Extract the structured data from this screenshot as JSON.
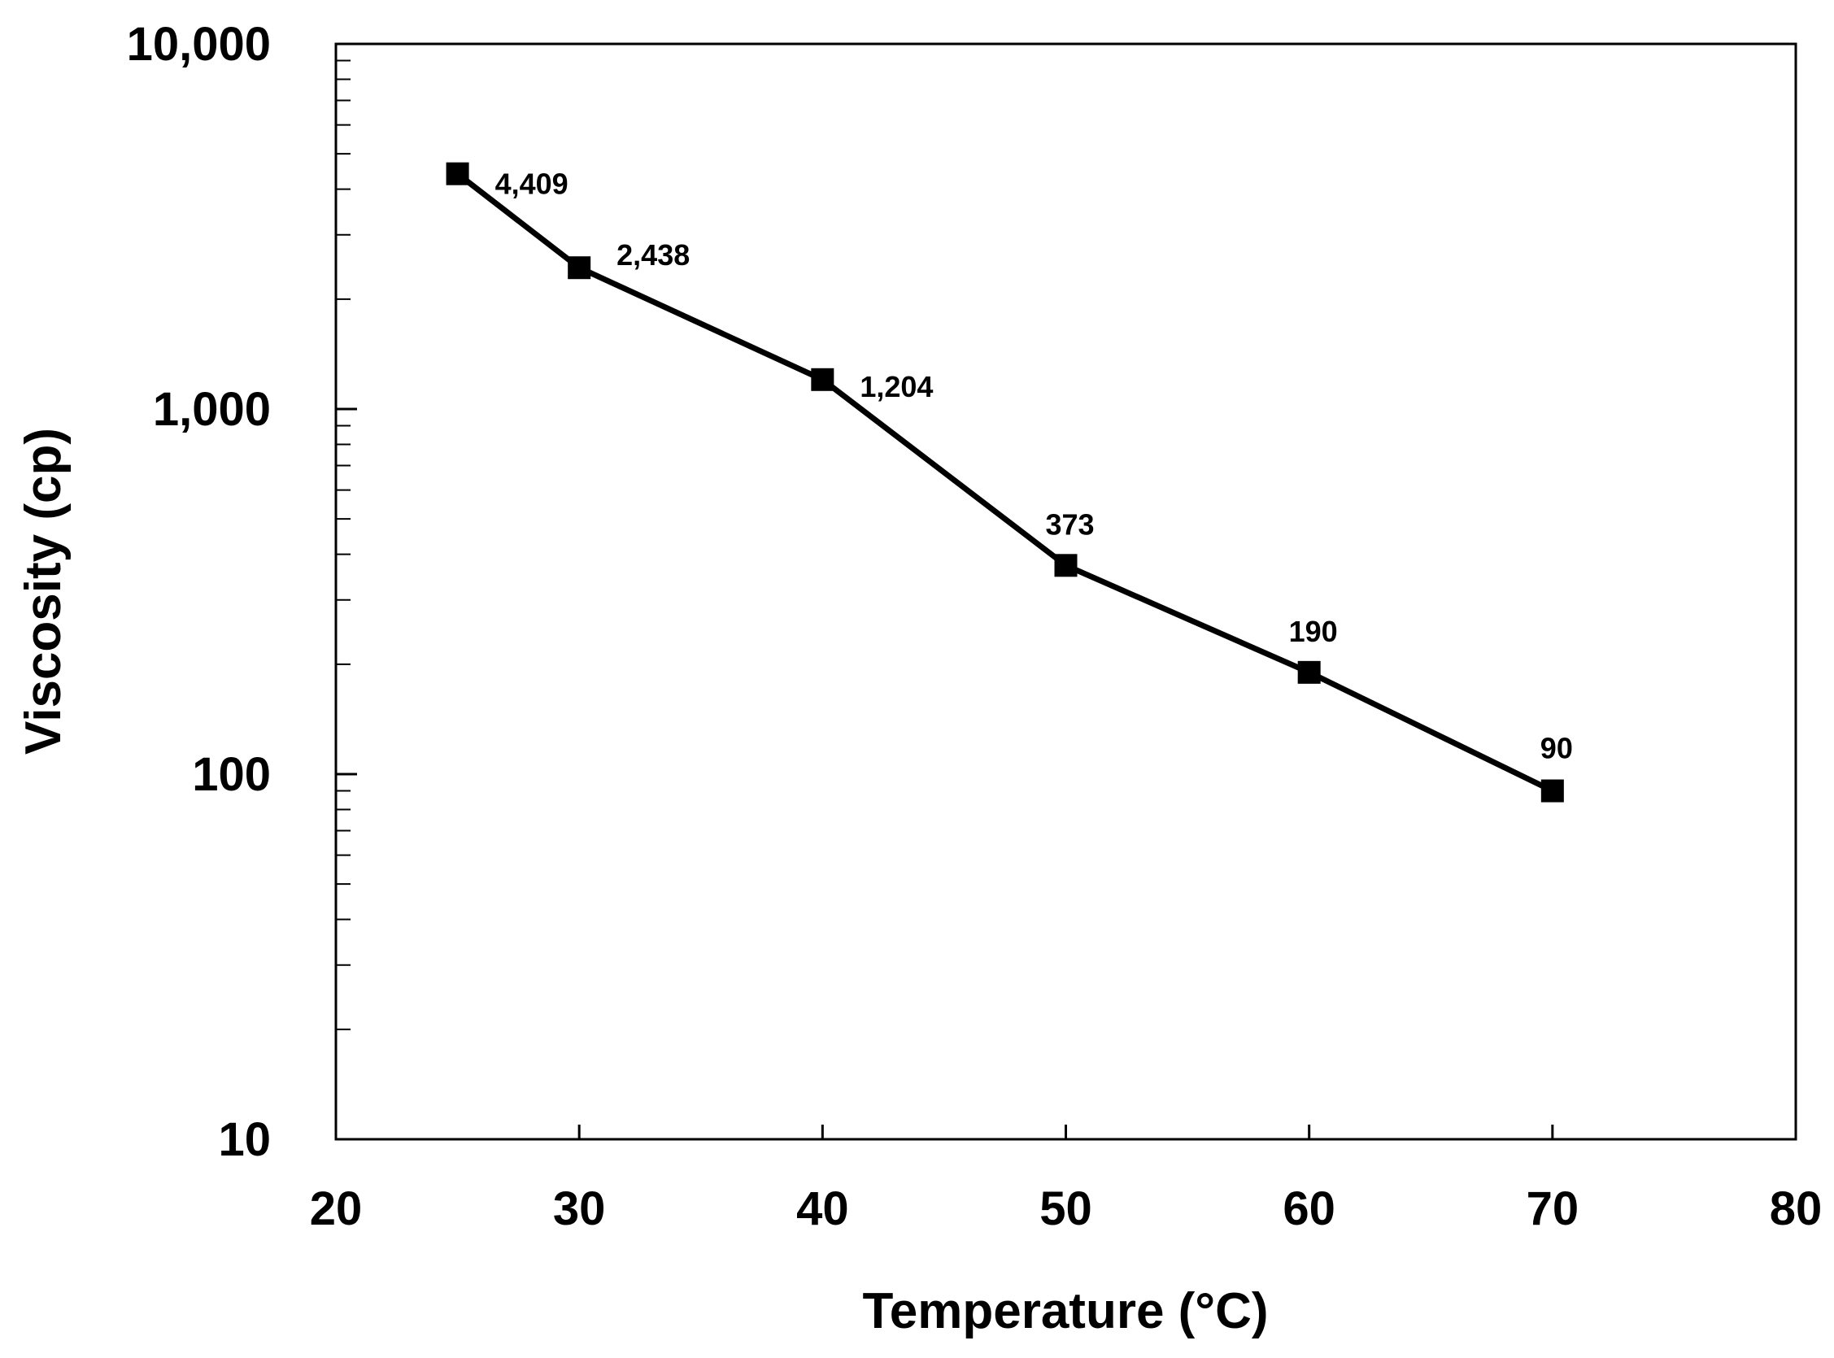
{
  "chart_data": {
    "type": "line",
    "title": "",
    "xlabel": "Temperature (°C)",
    "ylabel": "Viscosity (cp)",
    "xlim": [
      20,
      80
    ],
    "ylim": [
      10,
      10000
    ],
    "yscale": "log",
    "grid": false,
    "x_ticks": [
      "20",
      "30",
      "40",
      "50",
      "60",
      "70",
      "80"
    ],
    "y_ticks": [
      "10",
      "100",
      "1,000",
      "10,000"
    ],
    "series": [
      {
        "name": "Viscosity",
        "marker": "square",
        "color": "#000000",
        "x": [
          25,
          30,
          40,
          50,
          60,
          70
        ],
        "values": [
          4409,
          2438,
          1204,
          373,
          190,
          90
        ],
        "labels": [
          "4,409",
          "2,438",
          "1,204",
          "373",
          "190",
          "90"
        ]
      }
    ]
  }
}
